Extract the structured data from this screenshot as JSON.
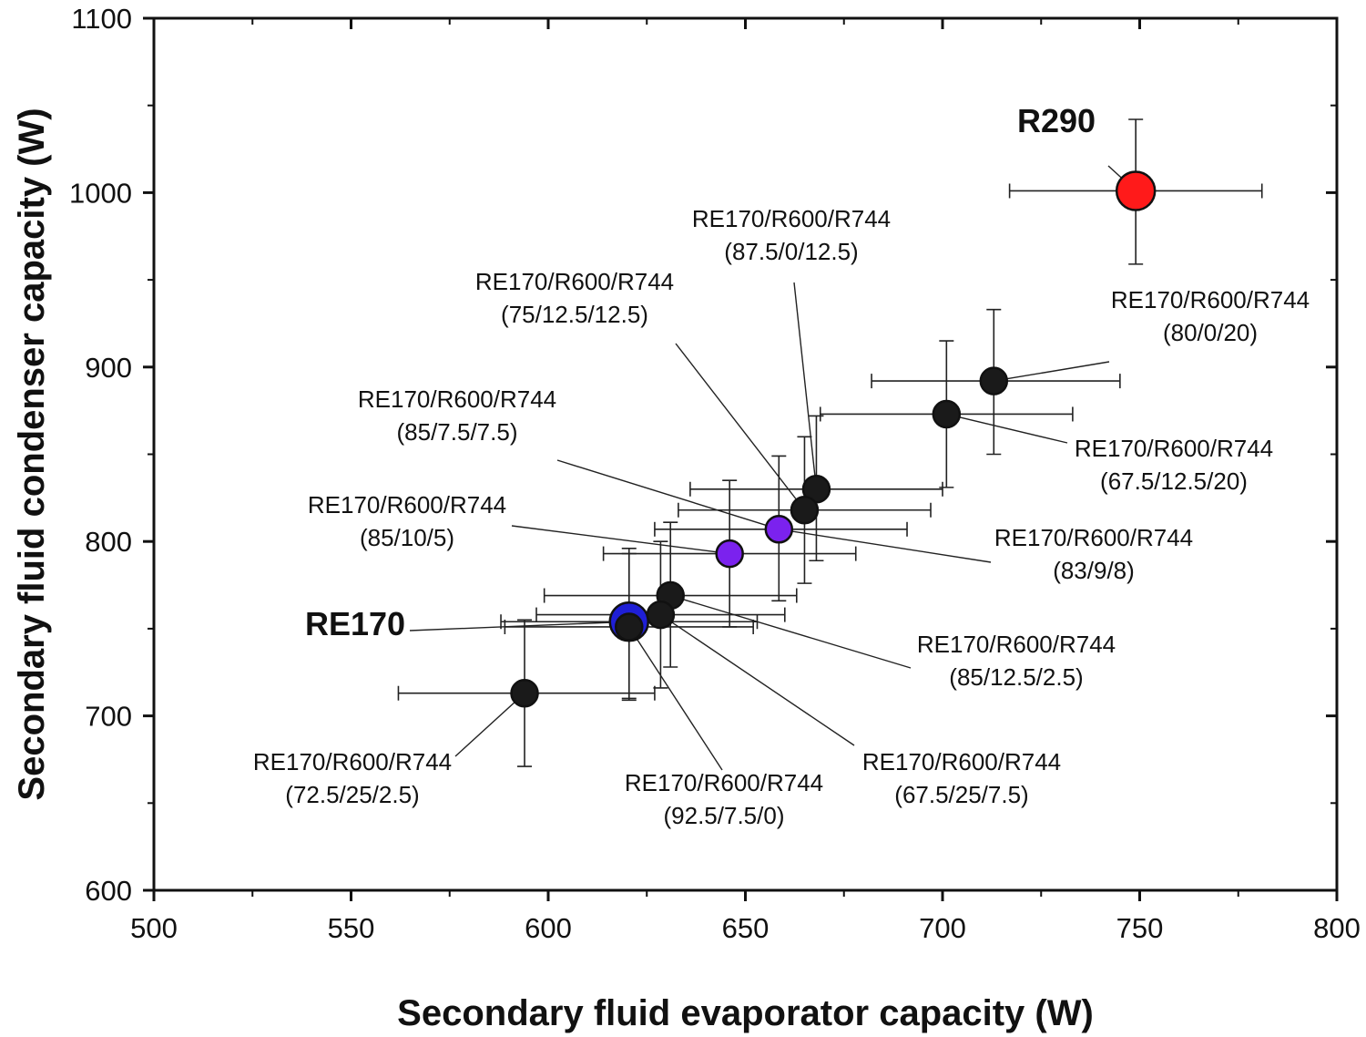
{
  "chart_data": {
    "type": "scatter",
    "xlabel": "Secondary fluid evaporator capacity (W)",
    "ylabel": "Secondary fluid condenser capacity (W)",
    "xlim": [
      500,
      800
    ],
    "ylim": [
      600,
      1100
    ],
    "x_ticks": [
      "500",
      "550",
      "600",
      "650",
      "700",
      "750",
      "800"
    ],
    "y_ticks": [
      "600",
      "700",
      "800",
      "900",
      "1000",
      "1100"
    ],
    "colors": {
      "black": "#1a1a1a",
      "blue": "#1f1fd6",
      "red": "#ff1a1a",
      "purple": "#7b22ee"
    },
    "points": [
      {
        "id": "r290",
        "x": 749,
        "y": 1001,
        "xerr": [
          717,
          781
        ],
        "yerr": [
          959,
          1042
        ],
        "color": "red",
        "size": "large",
        "label": [
          "R290"
        ],
        "bold": true,
        "label_xy": [
          1160,
          145
        ],
        "label_anchor": "middle",
        "leader_start": [
          1217,
          182
        ]
      },
      {
        "id": "re170",
        "x": 620.5,
        "y": 754,
        "xerr": [
          588,
          653
        ],
        "yerr": [
          710,
          796
        ],
        "color": "blue",
        "size": "large",
        "label": [
          "RE170"
        ],
        "bold": true,
        "label_xy": [
          390,
          697
        ],
        "label_anchor": "middle",
        "leader_start": [
          450,
          692
        ]
      },
      {
        "id": "m_80_0_20",
        "x": 713,
        "y": 892,
        "xerr": [
          682,
          745
        ],
        "yerr": [
          850,
          933
        ],
        "color": "black",
        "label": [
          "RE170/R600/R744",
          "(80/0/20)"
        ],
        "label_xy": [
          1329,
          338
        ],
        "label_anchor": "middle",
        "leader_start": [
          1218,
          397
        ]
      },
      {
        "id": "m_67_5_12_5_20",
        "x": 701,
        "y": 873,
        "xerr": [
          669,
          733
        ],
        "yerr": [
          831,
          915
        ],
        "color": "black",
        "label": [
          "RE170/R600/R744",
          "(67.5/12.5/20)"
        ],
        "label_xy": [
          1289,
          501
        ],
        "label_anchor": "middle",
        "leader_start": [
          1172,
          486
        ]
      },
      {
        "id": "m_87_5_0_12_5",
        "x": 668,
        "y": 830,
        "xerr": [
          636,
          700
        ],
        "yerr": [
          789,
          872
        ],
        "color": "black",
        "label": [
          "RE170/R600/R744",
          "(87.5/0/12.5)"
        ],
        "label_xy": [
          869,
          249
        ],
        "label_anchor": "middle",
        "leader_start": [
          872,
          310
        ]
      },
      {
        "id": "m_75_12_5_12_5",
        "x": 665,
        "y": 818,
        "xerr": [
          633,
          697
        ],
        "yerr": [
          776,
          860
        ],
        "color": "black",
        "label": [
          "RE170/R600/R744",
          "(75/12.5/12.5)"
        ],
        "label_xy": [
          631,
          318
        ],
        "label_anchor": "middle",
        "leader_start": [
          742,
          377
        ]
      },
      {
        "id": "m_85_7_5_7_5",
        "x": 658.5,
        "y": 807,
        "xerr": [
          627,
          691
        ],
        "yerr": [
          766,
          849
        ],
        "color": "purple",
        "label": [
          "RE170/R600/R744",
          "(85/7.5/7.5)"
        ],
        "label_xy": [
          502,
          447
        ],
        "label_anchor": "middle",
        "leader_start": [
          612,
          505
        ]
      },
      {
        "id": "m_83_9_8",
        "x": 658.5,
        "y": 807,
        "xerr": null,
        "yerr": null,
        "color": "none",
        "label": [
          "RE170/R600/R744",
          "(83/9/8)"
        ],
        "label_xy": [
          1201,
          599
        ],
        "label_anchor": "middle",
        "leader_start": [
          1088,
          617
        ]
      },
      {
        "id": "m_85_10_5",
        "x": 646,
        "y": 793,
        "xerr": [
          614,
          678
        ],
        "yerr": [
          751,
          835
        ],
        "color": "purple",
        "label": [
          "RE170/R600/R744",
          "(85/10/5)"
        ],
        "label_xy": [
          447,
          563
        ],
        "label_anchor": "middle",
        "leader_start": [
          562,
          577
        ]
      },
      {
        "id": "m_85_12_5_2_5",
        "x": 631,
        "y": 769,
        "xerr": [
          599,
          663
        ],
        "yerr": [
          728,
          811
        ],
        "color": "black",
        "label": [
          "RE170/R600/R744",
          "(85/12.5/2.5)"
        ],
        "label_xy": [
          1116,
          716
        ],
        "label_anchor": "middle",
        "leader_start": [
          1000,
          733
        ]
      },
      {
        "id": "m_67_5_25_7_5",
        "x": 628.5,
        "y": 758,
        "xerr": [
          597,
          660
        ],
        "yerr": [
          716,
          800
        ],
        "color": "black",
        "label": [
          "RE170/R600/R744",
          "(67.5/25/7.5)"
        ],
        "label_xy": [
          1056,
          845
        ],
        "label_anchor": "middle",
        "leader_start": [
          938,
          818
        ]
      },
      {
        "id": "m_92_5_7_5_0",
        "x": 620.5,
        "y": 751,
        "xerr": [
          589,
          652
        ],
        "yerr": [
          709,
          793
        ],
        "color": "black",
        "label": [
          "RE170/R600/R744",
          "(92.5/7.5/0)"
        ],
        "label_xy": [
          795,
          868
        ],
        "label_anchor": "middle",
        "leader_start": [
          793,
          845
        ]
      },
      {
        "id": "m_72_5_25_2_5",
        "x": 594,
        "y": 713,
        "xerr": [
          562,
          627
        ],
        "yerr": [
          671,
          755
        ],
        "color": "black",
        "label": [
          "RE170/R600/R744",
          "(72.5/25/2.5)"
        ],
        "label_xy": [
          387,
          845
        ],
        "label_anchor": "middle",
        "leader_start": [
          500,
          830
        ]
      }
    ]
  }
}
